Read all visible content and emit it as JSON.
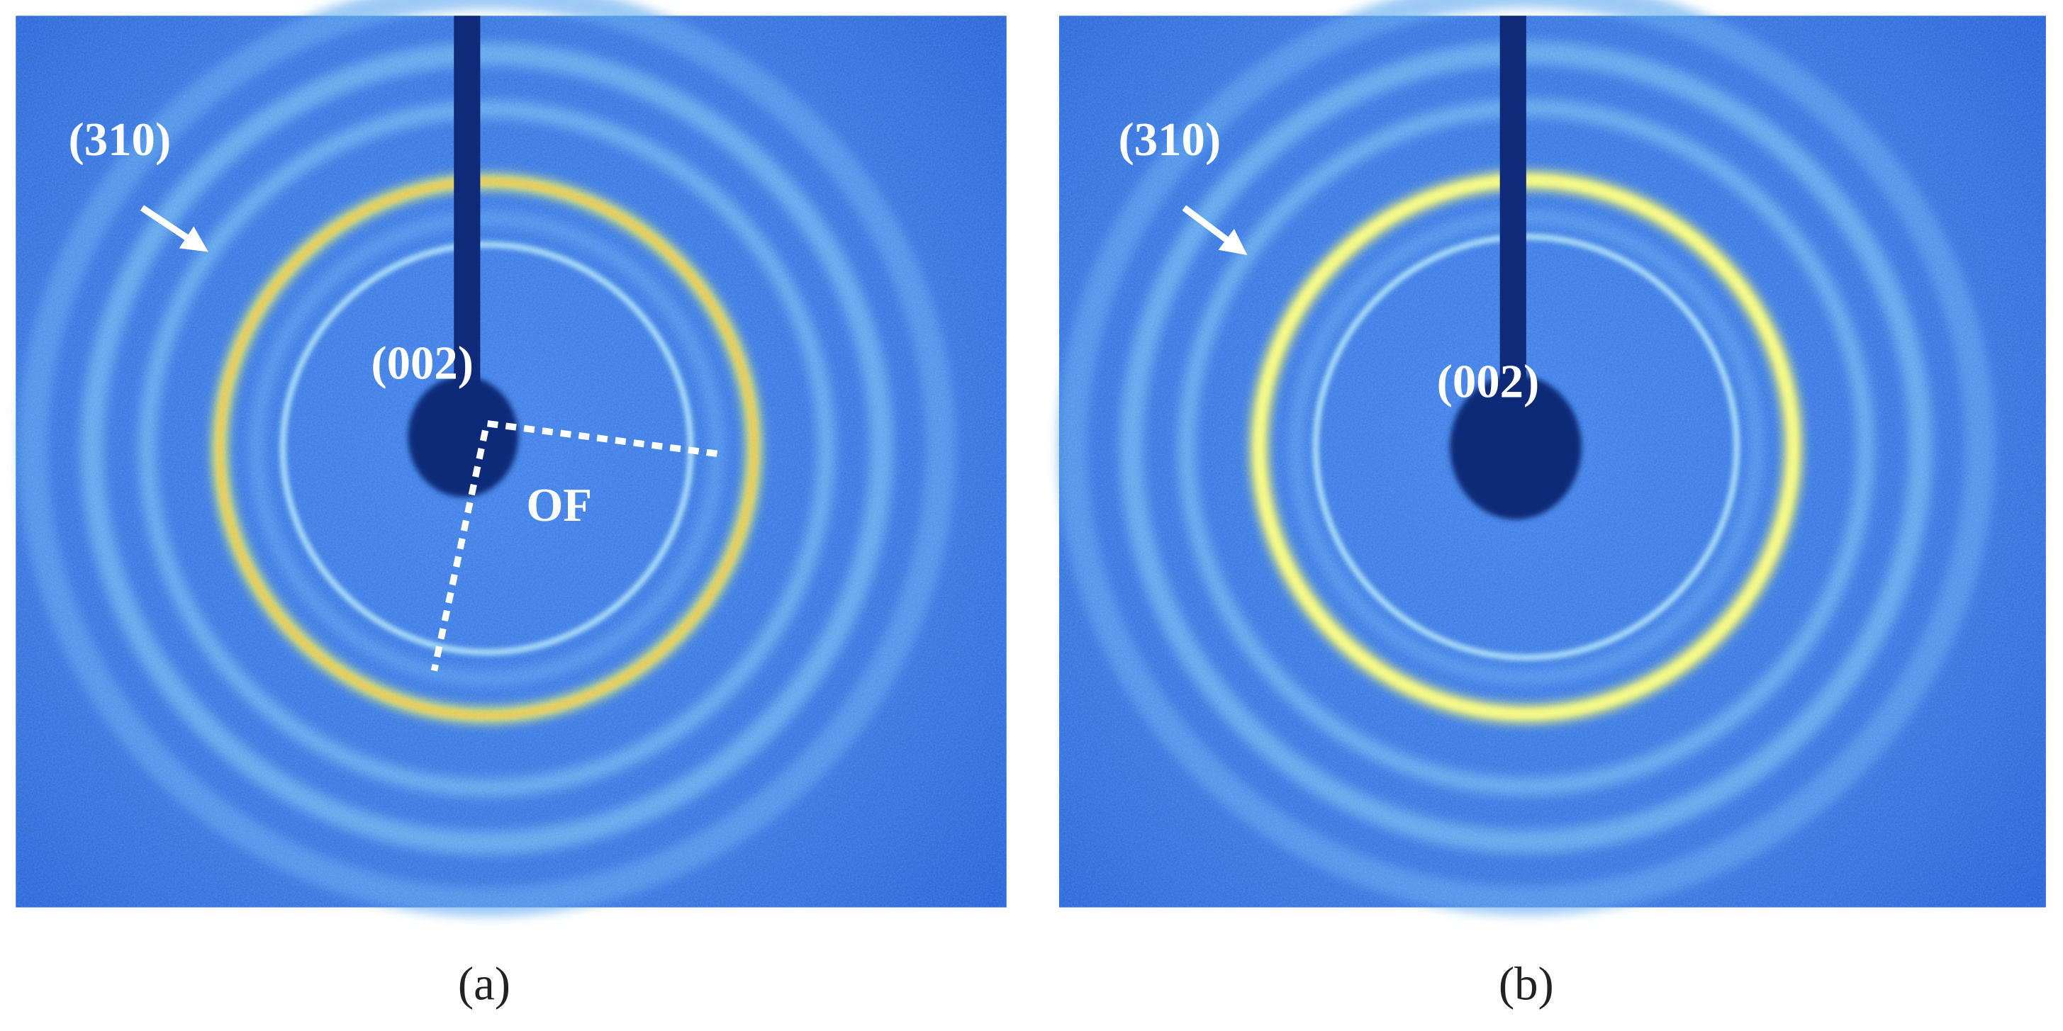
{
  "panels": [
    {
      "annotations": [
        "(310)",
        "(002)",
        "OF"
      ],
      "caption": "(a)"
    },
    {
      "annotations": [
        "(310)",
        "(002)"
      ],
      "caption": "(b)"
    }
  ]
}
